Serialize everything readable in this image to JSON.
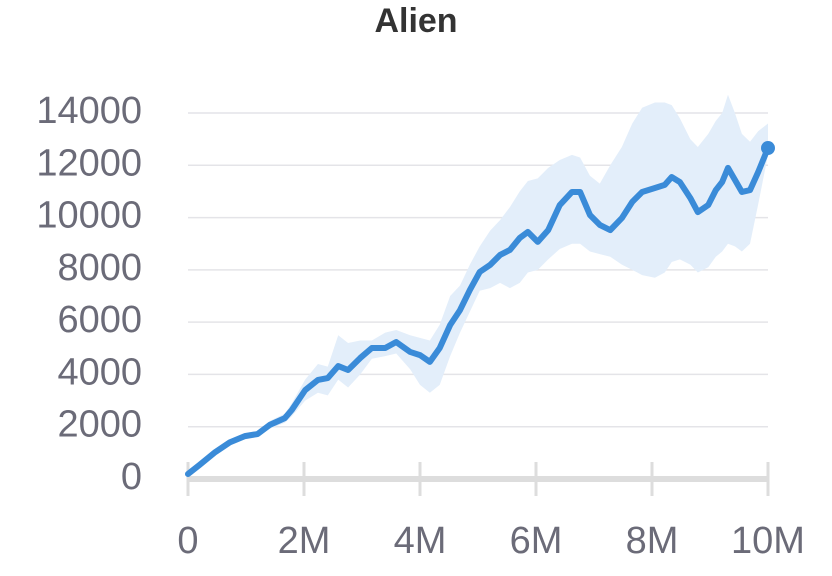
{
  "chart_data": {
    "type": "line",
    "title": "Alien",
    "x": [
      0,
      0.2,
      0.47,
      0.72,
      0.98,
      1.2,
      1.41,
      1.67,
      1.79,
      2.02,
      2.24,
      2.41,
      2.59,
      2.76,
      2.97,
      3.17,
      3.4,
      3.59,
      3.83,
      4.0,
      4.17,
      4.34,
      4.52,
      4.69,
      4.86,
      5.03,
      5.21,
      5.38,
      5.55,
      5.72,
      5.86,
      6.03,
      6.21,
      6.41,
      6.62,
      6.76,
      6.93,
      7.1,
      7.28,
      7.48,
      7.66,
      7.83,
      8.05,
      8.22,
      8.34,
      8.48,
      8.66,
      8.79,
      8.97,
      9.1,
      9.21,
      9.31,
      9.43,
      9.55,
      9.69,
      9.83,
      10
    ],
    "series": [
      {
        "color": "#3a8bd8",
        "band_color": "#e3eefa",
        "values": [
          190,
          540,
          1030,
          1400,
          1640,
          1720,
          2070,
          2330,
          2640,
          3400,
          3790,
          3860,
          4320,
          4170,
          4630,
          5010,
          5010,
          5240,
          4860,
          4740,
          4480,
          5010,
          5890,
          6460,
          7230,
          7920,
          8190,
          8570,
          8760,
          9220,
          9450,
          9070,
          9520,
          10480,
          10980,
          10980,
          10100,
          9720,
          9520,
          9980,
          10600,
          10980,
          11130,
          11250,
          11550,
          11360,
          10750,
          10210,
          10480,
          11050,
          11360,
          11900,
          11440,
          10980,
          11050,
          11740,
          12660
        ],
        "lower": [
          100,
          450,
          900,
          1280,
          1520,
          1600,
          1920,
          2150,
          2400,
          3000,
          3300,
          3200,
          3800,
          3500,
          4000,
          4600,
          4700,
          4800,
          4200,
          3600,
          3300,
          3600,
          4700,
          5600,
          6400,
          7200,
          7300,
          7500,
          7300,
          7500,
          7900,
          8000,
          8400,
          8800,
          9000,
          9000,
          8700,
          8600,
          8500,
          8200,
          8000,
          7800,
          7700,
          7900,
          8300,
          8400,
          8200,
          7900,
          8100,
          8500,
          8700,
          9000,
          8900,
          8700,
          9000,
          10500,
          12400
        ],
        "upper": [
          280,
          630,
          1150,
          1520,
          1760,
          1840,
          2220,
          2500,
          2900,
          3800,
          4400,
          4300,
          5500,
          5200,
          5300,
          5300,
          5600,
          5700,
          5500,
          5400,
          5300,
          5900,
          7000,
          7400,
          8200,
          8900,
          9500,
          9900,
          10400,
          11000,
          11400,
          11500,
          11900,
          12200,
          12400,
          12300,
          11600,
          11300,
          12000,
          12700,
          13600,
          14200,
          14400,
          14400,
          14300,
          13800,
          13000,
          12700,
          13200,
          13700,
          14000,
          14700,
          14000,
          13200,
          12900,
          13300,
          13600
        ]
      }
    ],
    "xlim": [
      0,
      10
    ],
    "xticks": [
      0,
      {
        "value": 2,
        "label": "2M"
      },
      {
        "value": 4,
        "label": "4M"
      },
      {
        "value": 6,
        "label": "6M"
      },
      {
        "value": 8,
        "label": "8M"
      },
      {
        "value": 10,
        "label": "10M"
      }
    ],
    "ylim": [
      0,
      14000
    ],
    "yticks": [
      0,
      2000,
      4000,
      6000,
      8000,
      10000,
      12000,
      14000
    ],
    "grid": true
  }
}
